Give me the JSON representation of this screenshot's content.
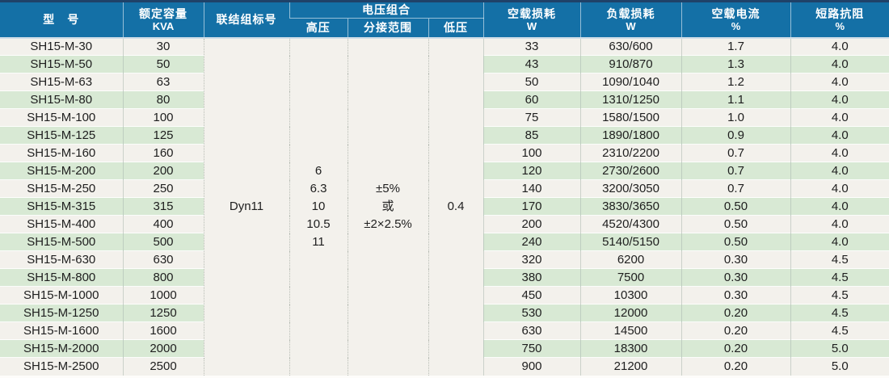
{
  "colors": {
    "header_blue": "#1470a6",
    "header_top_edge": "#1f4269",
    "row_base": "#f3f1ec",
    "row_alt_green": "#d8e9d4",
    "merged_cell_bg": "#f0efea",
    "text": "#1e1e1e"
  },
  "table": {
    "headers": {
      "model": "型　号",
      "capacity_zh": "额定容量",
      "capacity_unit": "KVA",
      "connection": "联结组标号",
      "voltage_group": "电压组合",
      "hv": "高压",
      "tap_range": "分接范围",
      "lv": "低压",
      "no_load_loss_zh": "空载损耗",
      "no_load_loss_unit": "W",
      "load_loss_zh": "负载损耗",
      "load_loss_unit": "W",
      "no_load_current_zh": "空载电流",
      "no_load_current_unit": "%",
      "impedance_zh": "短路抗阻",
      "impedance_unit": "%"
    },
    "merged": {
      "connection_value": "Dyn11",
      "hv_values": [
        "6",
        "6.3",
        "10",
        "10.5",
        "11"
      ],
      "tap_range_lines": [
        "±5%",
        "或",
        "±2×2.5%"
      ],
      "lv_value": "0.4"
    },
    "row_fields": [
      "model",
      "kva",
      "no_load_loss_w",
      "load_loss_w",
      "no_load_current_pct",
      "impedance_pct"
    ],
    "rows": [
      [
        "SH15-M-30",
        "30",
        "33",
        "630/600",
        "1.7",
        "4.0"
      ],
      [
        "SH15-M-50",
        "50",
        "43",
        "910/870",
        "1.3",
        "4.0"
      ],
      [
        "SH15-M-63",
        "63",
        "50",
        "1090/1040",
        "1.2",
        "4.0"
      ],
      [
        "SH15-M-80",
        "80",
        "60",
        "1310/1250",
        "1.1",
        "4.0"
      ],
      [
        "SH15-M-100",
        "100",
        "75",
        "1580/1500",
        "1.0",
        "4.0"
      ],
      [
        "SH15-M-125",
        "125",
        "85",
        "1890/1800",
        "0.9",
        "4.0"
      ],
      [
        "SH15-M-160",
        "160",
        "100",
        "2310/2200",
        "0.7",
        "4.0"
      ],
      [
        "SH15-M-200",
        "200",
        "120",
        "2730/2600",
        "0.7",
        "4.0"
      ],
      [
        "SH15-M-250",
        "250",
        "140",
        "3200/3050",
        "0.7",
        "4.0"
      ],
      [
        "SH15-M-315",
        "315",
        "170",
        "3830/3650",
        "0.50",
        "4.0"
      ],
      [
        "SH15-M-400",
        "400",
        "200",
        "4520/4300",
        "0.50",
        "4.0"
      ],
      [
        "SH15-M-500",
        "500",
        "240",
        "5140/5150",
        "0.50",
        "4.0"
      ],
      [
        "SH15-M-630",
        "630",
        "320",
        "6200",
        "0.30",
        "4.5"
      ],
      [
        "SH15-M-800",
        "800",
        "380",
        "7500",
        "0.30",
        "4.5"
      ],
      [
        "SH15-M-1000",
        "1000",
        "450",
        "10300",
        "0.30",
        "4.5"
      ],
      [
        "SH15-M-1250",
        "1250",
        "530",
        "12000",
        "0.20",
        "4.5"
      ],
      [
        "SH15-M-1600",
        "1600",
        "630",
        "14500",
        "0.20",
        "4.5"
      ],
      [
        "SH15-M-2000",
        "2000",
        "750",
        "18300",
        "0.20",
        "5.0"
      ],
      [
        "SH15-M-2500",
        "2500",
        "900",
        "21200",
        "0.20",
        "5.0"
      ]
    ]
  }
}
